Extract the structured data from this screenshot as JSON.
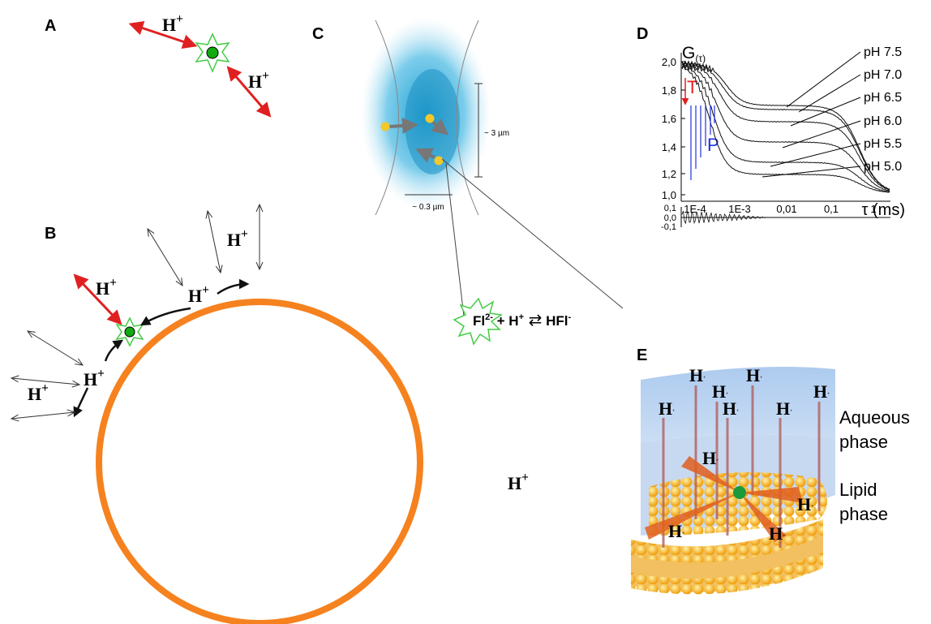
{
  "panels": {
    "a": "A",
    "b": "B",
    "c": "C",
    "d": "D",
    "e": "E"
  },
  "proton": {
    "base": "H",
    "sup": "+"
  },
  "panel_c": {
    "height_label": "~ 3 µm",
    "width_label": "~ 0.3 µm",
    "equation": {
      "fl": "Fl",
      "fl_charge": "2-",
      "plus": "+",
      "h": "H",
      "h_charge": "+",
      "arrow": "⇄",
      "hfl": "HFl",
      "hfl_charge": "-"
    }
  },
  "panel_d": {
    "y_label": {
      "base": "G",
      "sub": "(τ)"
    },
    "t_label": "T",
    "p_label": "P",
    "series_labels": [
      "pH 7.5",
      "pH 7.0",
      "pH 6.5",
      "pH 6.0",
      "pH 5.5",
      "pH 5.0"
    ],
    "y_ticks": [
      "2,0",
      "1,8",
      "1,6",
      "1,4",
      "1,2",
      "1,0"
    ],
    "x_ticks": [
      "1E-4",
      "1E-3",
      "0,01",
      "0,1",
      "1"
    ],
    "x_label": {
      "symbol": "τ",
      "unit": "(ms)"
    },
    "residual_ticks": [
      "0,1",
      "0,0",
      "-0,1"
    ]
  },
  "panel_e": {
    "aqueous": [
      "Aqueous",
      "phase"
    ],
    "lipid": [
      "Lipid",
      "phase"
    ]
  }
}
